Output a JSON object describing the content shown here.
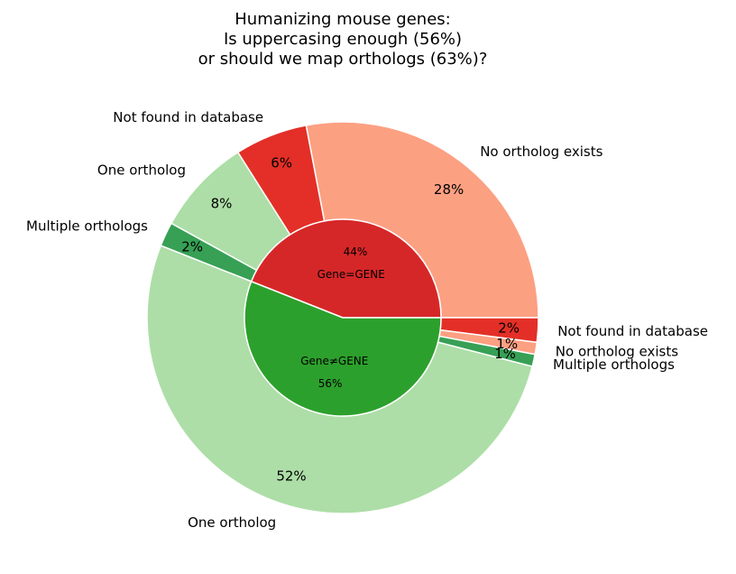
{
  "chart_data": {
    "type": "pie",
    "subtype": "nested-donut",
    "title": [
      "Humanizing mouse genes:",
      "Is uppercasing enough (56%)",
      "or should we map orthologs (63%)?"
    ],
    "start_angle_deg": 0,
    "direction": "counterclockwise",
    "inner": [
      {
        "category": "Gene≠GENE",
        "value": 44,
        "pct_label": "44%",
        "color": "#d62728"
      },
      {
        "category": "Gene=GENE",
        "value": 56,
        "pct_label": "56%",
        "color": "#2ca02c"
      }
    ],
    "outer": [
      {
        "label": "No ortholog exists",
        "value": 28,
        "pct_label": "28%",
        "color": "#fca082"
      },
      {
        "label": "Not found in database",
        "value": 6,
        "pct_label": "6%",
        "color": "#e32f27"
      },
      {
        "label": "One ortholog",
        "value": 8,
        "pct_label": "8%",
        "color": "#addea7"
      },
      {
        "label": "Multiple orthologs",
        "value": 2,
        "pct_label": "2%",
        "color": "#37a055"
      },
      {
        "label": "One ortholog",
        "value": 52,
        "pct_label": "52%",
        "color": "#addea7"
      },
      {
        "label": "Multiple orthologs",
        "value": 1,
        "pct_label": "1%",
        "color": "#37a055"
      },
      {
        "label": "No ortholog exists",
        "value": 1,
        "pct_label": "1%",
        "color": "#fca082"
      },
      {
        "label": "Not found in database",
        "value": 2,
        "pct_label": "2%",
        "color": "#e32f27"
      }
    ]
  }
}
